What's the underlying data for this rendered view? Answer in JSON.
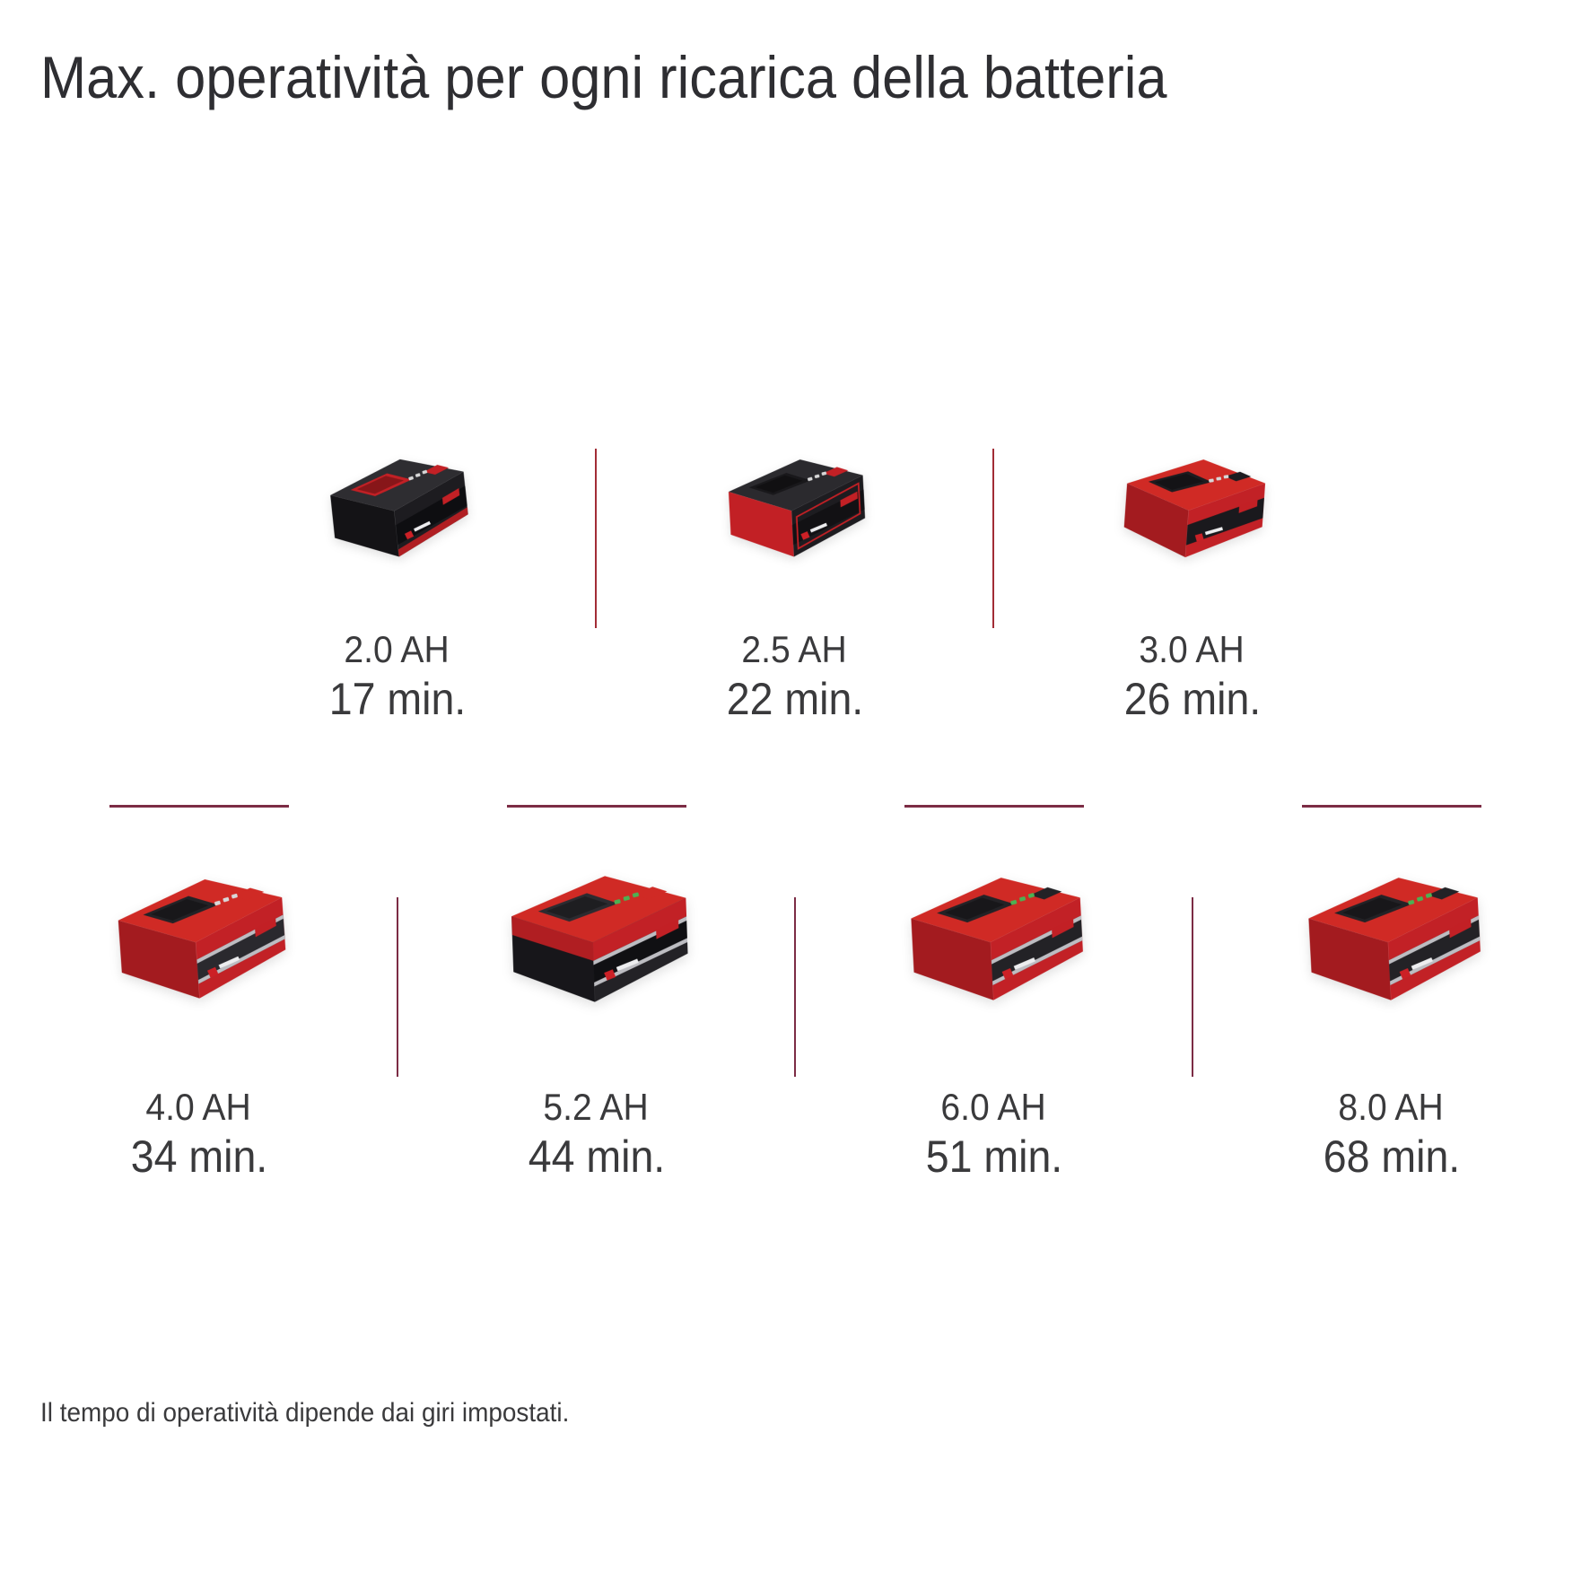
{
  "title": "Max. operatività per ogni ricarica della batteria",
  "footnote": "Il tempo di operatività dipende dai giri impostati.",
  "colors": {
    "background": "#ffffff",
    "title_text": "#2e2e32",
    "label_text": "#3a3a3c",
    "divider_red": "#a22d36",
    "divider_maroon": "#7c2c45",
    "battery_red": "#c8211f",
    "battery_black": "#1f1e22",
    "led_green": "#4cb153"
  },
  "batteries": {
    "top": [
      {
        "capacity": "2.0 AH",
        "runtime": "17 min.",
        "variant": "compact-black"
      },
      {
        "capacity": "2.5 AH",
        "runtime": "22 min.",
        "variant": "compact-black-redclip"
      },
      {
        "capacity": "3.0 AH",
        "runtime": "26 min.",
        "variant": "compact-red"
      }
    ],
    "bottom": [
      {
        "capacity": "4.0 AH",
        "runtime": "34 min.",
        "variant": "plus-red"
      },
      {
        "capacity": "5.2 AH",
        "runtime": "44 min.",
        "variant": "plus-red-black"
      },
      {
        "capacity": "6.0 AH",
        "runtime": "51 min.",
        "variant": "hd-red"
      },
      {
        "capacity": "8.0 AH",
        "runtime": "68 min.",
        "variant": "hd-red"
      }
    ]
  },
  "chart_data": {
    "type": "table",
    "title": "Max. operatività per ogni ricarica della batteria",
    "categories": [
      "2.0 AH",
      "2.5 AH",
      "3.0 AH",
      "4.0 AH",
      "5.2 AH",
      "6.0 AH",
      "8.0 AH"
    ],
    "values_minutes": [
      17,
      22,
      26,
      34,
      44,
      51,
      68
    ],
    "unit": "min",
    "note": "Il tempo di operatività dipende dai giri impostati."
  }
}
